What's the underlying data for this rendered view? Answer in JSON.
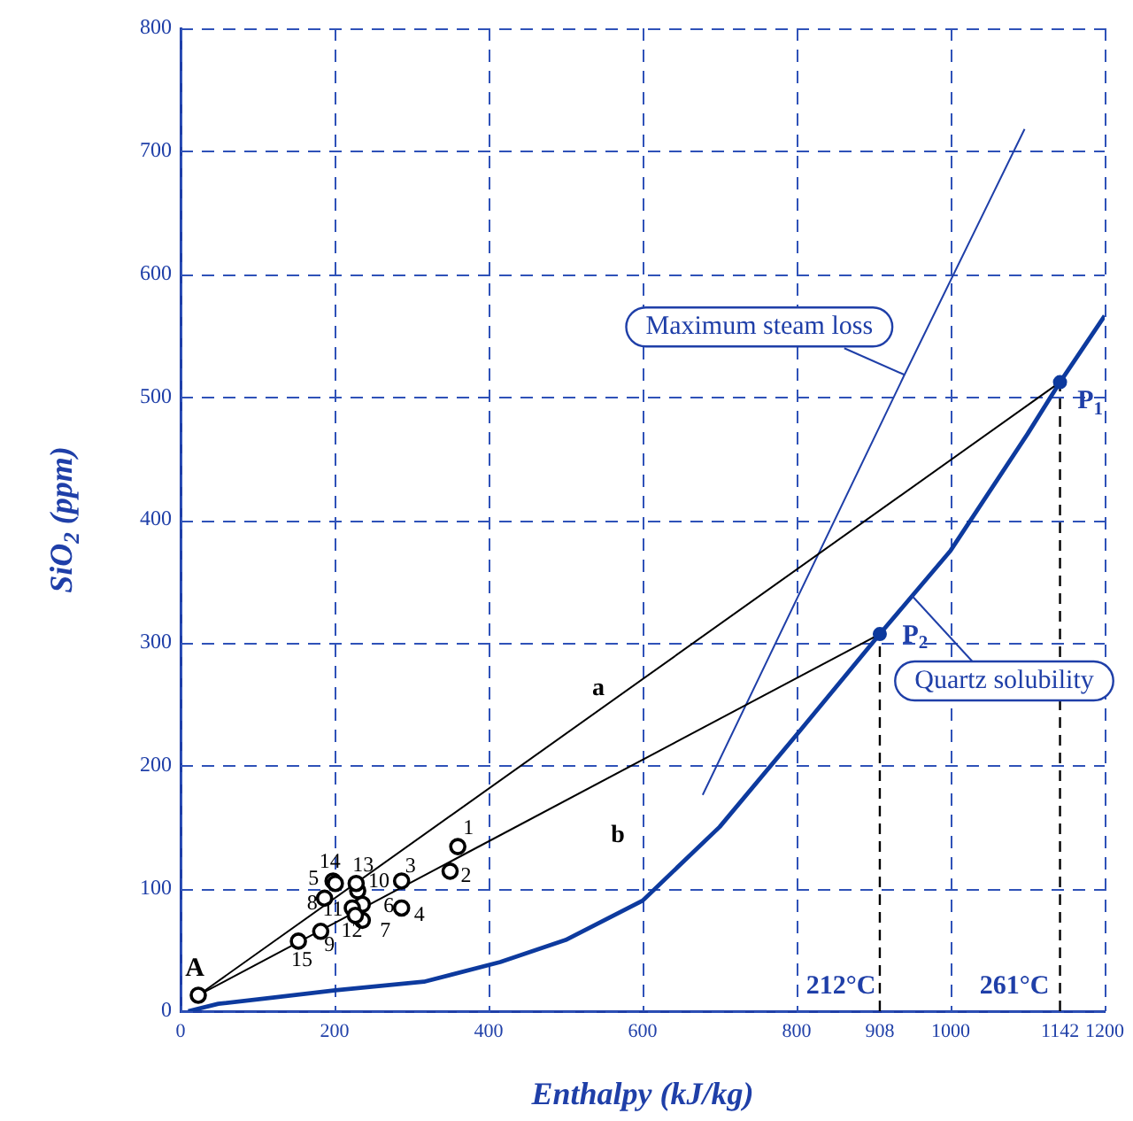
{
  "chart_data": {
    "type": "scatter",
    "xlabel": "Enthalpy (kJ/kg)",
    "ylabel": "SiO$_{2}$ (ppm)",
    "xlim": [
      0,
      1200
    ],
    "xticks": [
      0,
      200,
      400,
      600,
      800,
      908,
      1000,
      1142,
      1200
    ],
    "ylim": [
      0,
      800
    ],
    "yticks": [
      0,
      100,
      200,
      300,
      400,
      500,
      600,
      700,
      800
    ],
    "grid": true,
    "legend": false,
    "series": [
      {
        "color": "#000000",
        "marker": "circle",
        "x": [
          23,
          360,
          350,
          287,
          287,
          198,
          236,
          236,
          187,
          182,
          230,
          223,
          227,
          228,
          201,
          153
        ],
        "values": [
          13,
          134,
          114,
          106,
          84,
          106,
          87,
          74,
          92,
          65,
          98,
          84,
          78,
          104,
          104,
          57
        ]
      },
      {
        "type": "line",
        "color": "#000000",
        "marker": "none",
        "line_style": "solid",
        "x": [
          23,
          1142
        ],
        "values": [
          13,
          512
        ]
      },
      {
        "type": "line",
        "color": "#000000",
        "marker": "none",
        "line_style": "solid",
        "x": [
          23,
          908
        ],
        "values": [
          13,
          307
        ]
      },
      {
        "type": "line",
        "color": "#1f3fa8",
        "marker": "none",
        "line_style": "solid",
        "x": [
          678,
          940,
          1096
        ],
        "values": [
          176,
          518,
          718
        ]
      },
      {
        "type": "line",
        "color": "#0d3a9e",
        "marker": "none",
        "line_style": "solid",
        "x": [
          10,
          49,
          120,
          201,
          316,
          415,
          500,
          600,
          700,
          800,
          908,
          950,
          1000,
          1100,
          1142,
          1200
        ],
        "values": [
          0,
          6,
          11,
          17,
          24,
          40,
          58,
          90,
          150,
          225,
          307,
          338,
          375,
          470,
          512,
          566
        ]
      },
      {
        "color": "#0d3a9e",
        "marker": "circle",
        "x": [
          1142,
          908
        ],
        "values": [
          512,
          307
        ]
      },
      {
        "type": "line",
        "color": "#000000",
        "marker": "none",
        "line_style": "dashed",
        "x": [
          908,
          908
        ],
        "values": [
          0,
          307
        ]
      },
      {
        "type": "line",
        "color": "#000000",
        "marker": "none",
        "line_style": "dashed",
        "x": [
          1142,
          1142
        ],
        "values": [
          0,
          512
        ]
      }
    ],
    "annotations": [
      {
        "text": "A",
        "x": 23,
        "y": 13
      },
      {
        "text": "1",
        "x": 360,
        "y": 134
      },
      {
        "text": "2",
        "x": 350,
        "y": 114
      },
      {
        "text": "3",
        "x": 287,
        "y": 106
      },
      {
        "text": "4",
        "x": 287,
        "y": 84
      },
      {
        "text": "5",
        "x": 198,
        "y": 106
      },
      {
        "text": "6",
        "x": 236,
        "y": 87
      },
      {
        "text": "7",
        "x": 236,
        "y": 74
      },
      {
        "text": "8",
        "x": 187,
        "y": 92
      },
      {
        "text": "9",
        "x": 182,
        "y": 65
      },
      {
        "text": "10",
        "x": 230,
        "y": 98
      },
      {
        "text": "11",
        "x": 223,
        "y": 84
      },
      {
        "text": "12",
        "x": 227,
        "y": 78
      },
      {
        "text": "13",
        "x": 228,
        "y": 104
      },
      {
        "text": "14",
        "x": 201,
        "y": 104
      },
      {
        "text": "15",
        "x": 153,
        "y": 57
      },
      {
        "text": "P$_{1}$",
        "x": 1142,
        "y": 512
      },
      {
        "text": "P$_{2}$",
        "x": 908,
        "y": 307
      },
      "a",
      "b",
      "212°C",
      "261°C",
      {
        "text": "Maximum steam loss",
        "x": 940,
        "y": 518
      },
      {
        "text": "Quartz solubility",
        "x": 950,
        "y": 338
      }
    ]
  }
}
